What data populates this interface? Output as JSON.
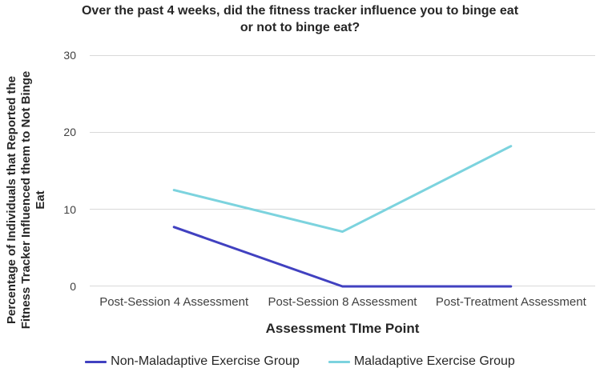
{
  "chart_data": {
    "type": "line",
    "title": "Over the past 4 weeks, did the fitness tracker influence you to binge eat or not to binge eat?",
    "title_lines": [
      "Over the past 4 weeks, did the fitness tracker influence you to binge eat",
      "or not to binge eat?"
    ],
    "xlabel": "Assessment TIme Point",
    "ylabel": "Percentage of Individuals that Reported the Fitness Tracker Influenced them to Not Binge Eat",
    "ylabel_lines": [
      "Percentage of Individuals that Reported the",
      "Fitness Tracker Influenced them to Not Binge",
      "Eat"
    ],
    "categories": [
      "Post-Session 4 Assessment",
      "Post-Session 8 Assessment",
      "Post-Treatment Assessment"
    ],
    "series": [
      {
        "name": "Non-Maladaptive Exercise Group",
        "values": [
          7.7,
          0,
          0
        ],
        "color": "#4141C0"
      },
      {
        "name": "Maladaptive Exercise Group",
        "values": [
          12.5,
          7.1,
          18.2
        ],
        "color": "#7CD3DE"
      }
    ],
    "ylim": [
      0,
      30
    ],
    "yticks": [
      0,
      10,
      20,
      30
    ],
    "grid": true,
    "legend_position": "bottom",
    "colors": {
      "gridline": "#D9D9D9",
      "tick_label": "#404040",
      "text": "#262626",
      "background": "#FFFFFF"
    }
  }
}
